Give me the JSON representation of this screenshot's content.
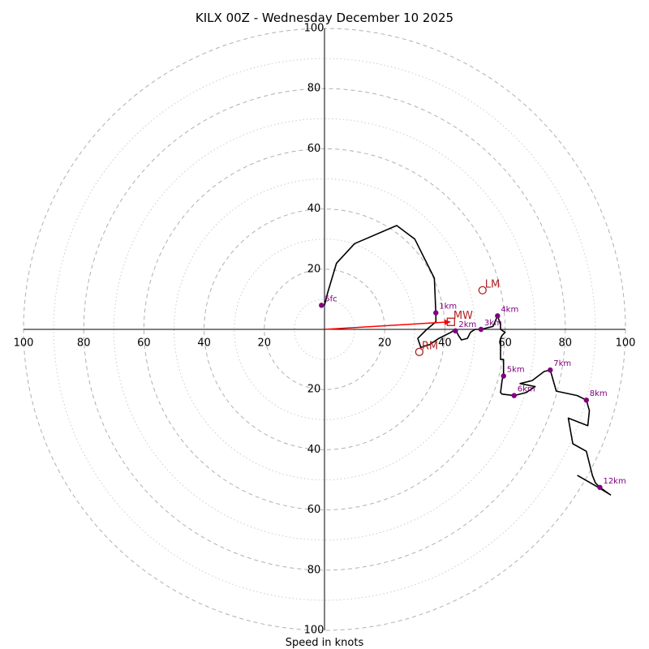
{
  "chart_data": {
    "type": "hodograph",
    "title": "KILX 00Z - Wednesday December 10 2025",
    "xlabel": "Speed in knots",
    "units": "knots",
    "max_speed": 100,
    "tick_labels": [
      "20",
      "40",
      "60",
      "80",
      "100"
    ],
    "ring_major_speeds": [
      20,
      40,
      60,
      80,
      100
    ],
    "ring_minor_speeds": [
      10,
      30,
      50,
      70,
      90
    ],
    "trace": {
      "color": "#000000",
      "points": [
        [
          0,
          8
        ],
        [
          1,
          12
        ],
        [
          4,
          22
        ],
        [
          10,
          28.5
        ],
        [
          24,
          34.5
        ],
        [
          30,
          30
        ],
        [
          33,
          24
        ],
        [
          36.5,
          17
        ],
        [
          37,
          5
        ],
        [
          37,
          2.5
        ],
        [
          34,
          0
        ],
        [
          31,
          -3
        ],
        [
          32,
          -6
        ],
        [
          35,
          -5
        ],
        [
          38,
          -3
        ],
        [
          42,
          -1
        ],
        [
          43.5,
          0
        ],
        [
          44.5,
          -2
        ],
        [
          45.5,
          -3.5
        ],
        [
          47.5,
          -3
        ],
        [
          48.5,
          -1
        ],
        [
          50,
          0
        ],
        [
          52,
          0
        ],
        [
          56,
          1
        ],
        [
          57.5,
          4.5
        ],
        [
          58.5,
          1.5
        ],
        [
          58.5,
          0
        ],
        [
          60,
          -1
        ],
        [
          59,
          -2
        ],
        [
          58.5,
          -3
        ],
        [
          58.5,
          -10
        ],
        [
          59.5,
          -10
        ],
        [
          59.5,
          -15
        ],
        [
          59,
          -17
        ],
        [
          58.5,
          -21
        ],
        [
          59,
          -21.5
        ],
        [
          63,
          -22
        ],
        [
          67,
          -21
        ],
        [
          70,
          -19
        ],
        [
          65,
          -18
        ],
        [
          69,
          -17
        ],
        [
          73,
          -14
        ],
        [
          75,
          -13.5
        ],
        [
          77,
          -20.5
        ],
        [
          84,
          -22
        ],
        [
          87,
          -23.5
        ],
        [
          88,
          -27
        ],
        [
          87.5,
          -32
        ],
        [
          81,
          -29.5
        ],
        [
          82.5,
          -38
        ],
        [
          87,
          -40.5
        ],
        [
          89,
          -48.5
        ],
        [
          90,
          -51
        ],
        [
          91.5,
          -52.5
        ],
        [
          95,
          -55
        ],
        [
          91,
          -52.5
        ],
        [
          84,
          -48.5
        ]
      ]
    },
    "height_markers": [
      {
        "label": "5fc",
        "u": -1,
        "v": 8
      },
      {
        "label": "1km",
        "u": 37,
        "v": 5.5
      },
      {
        "label": "2km",
        "u": 43.5,
        "v": -0.5
      },
      {
        "label": "3km",
        "u": 52,
        "v": 0
      },
      {
        "label": "4km",
        "u": 57.5,
        "v": 4.5
      },
      {
        "label": "5km",
        "u": 59.5,
        "v": -15.5
      },
      {
        "label": "6km",
        "u": 63,
        "v": -22
      },
      {
        "label": "7km",
        "u": 75,
        "v": -13.5
      },
      {
        "label": "8km",
        "u": 87,
        "v": -23.5
      },
      {
        "label": "12km",
        "u": 91.5,
        "v": -52.5
      }
    ],
    "motion_markers": [
      {
        "label": "MW",
        "u": 42,
        "v": 2.5,
        "shape": "square"
      },
      {
        "label": "LM",
        "u": 52.5,
        "v": 13,
        "shape": "circle"
      },
      {
        "label": "RM",
        "u": 31.5,
        "v": -7.5,
        "shape": "circle"
      }
    ],
    "mean_wind_vector": {
      "from": [
        0,
        0
      ],
      "to": [
        42,
        2.5
      ],
      "color": "#ff0000"
    },
    "colors": {
      "trace": "#000000",
      "height_marker": "#800080",
      "motion": "#b22222",
      "arrow": "#ff0000",
      "ring": "#b0b0b0",
      "axis": "#000000"
    }
  }
}
